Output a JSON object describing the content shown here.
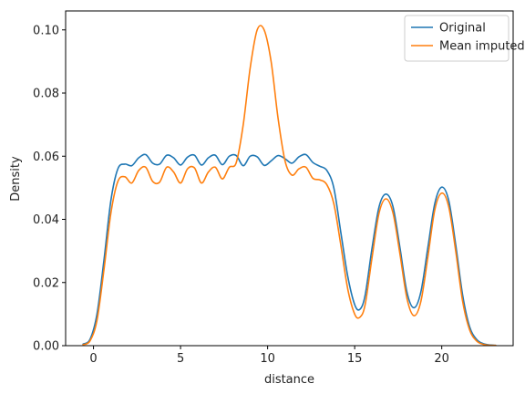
{
  "chart_data": {
    "type": "line",
    "title": "",
    "xlabel": "distance",
    "ylabel": "Density",
    "xlim": [
      -1.6,
      24.1
    ],
    "ylim": [
      0.0,
      0.106
    ],
    "xticks": [
      0,
      5,
      10,
      15,
      20
    ],
    "xtick_labels": [
      "0",
      "5",
      "10",
      "15",
      "20"
    ],
    "yticks": [
      0.0,
      0.02,
      0.04,
      0.06,
      0.08,
      0.1
    ],
    "ytick_labels": [
      "0.00",
      "0.02",
      "0.04",
      "0.06",
      "0.08",
      "0.10"
    ],
    "grid": false,
    "legend": "top-right",
    "series": [
      {
        "name": "Original",
        "color": "#1f77b4",
        "x": [
          -0.6,
          -0.2,
          0.2,
          0.6,
          1.0,
          1.4,
          1.8,
          2.2,
          2.6,
          3.0,
          3.4,
          3.8,
          4.2,
          4.6,
          5.0,
          5.4,
          5.8,
          6.2,
          6.6,
          7.0,
          7.4,
          7.8,
          8.2,
          8.6,
          9.0,
          9.4,
          9.8,
          10.2,
          10.6,
          11.0,
          11.4,
          11.8,
          12.2,
          12.6,
          13.0,
          13.4,
          13.8,
          14.2,
          14.6,
          15.0,
          15.3,
          15.6,
          16.0,
          16.4,
          16.8,
          17.2,
          17.6,
          18.0,
          18.4,
          18.8,
          19.2,
          19.6,
          20.0,
          20.4,
          20.8,
          21.2,
          21.6,
          22.0,
          22.4,
          22.8,
          23.1
        ],
        "y": [
          0.0005,
          0.002,
          0.01,
          0.027,
          0.046,
          0.056,
          0.0575,
          0.057,
          0.0595,
          0.0605,
          0.0578,
          0.0575,
          0.0603,
          0.0595,
          0.0572,
          0.0597,
          0.0603,
          0.0572,
          0.0595,
          0.0603,
          0.0573,
          0.06,
          0.0602,
          0.057,
          0.06,
          0.0598,
          0.0571,
          0.0585,
          0.0602,
          0.0592,
          0.0578,
          0.0598,
          0.0605,
          0.058,
          0.0568,
          0.0555,
          0.05,
          0.036,
          0.022,
          0.013,
          0.0115,
          0.016,
          0.031,
          0.044,
          0.048,
          0.044,
          0.031,
          0.017,
          0.012,
          0.017,
          0.031,
          0.045,
          0.0502,
          0.046,
          0.032,
          0.016,
          0.006,
          0.002,
          0.0006,
          0.0002,
          0.0001
        ]
      },
      {
        "name": "Mean imputed",
        "color": "#ff7f0e",
        "x": [
          -0.6,
          -0.2,
          0.2,
          0.6,
          1.0,
          1.4,
          1.8,
          2.2,
          2.6,
          3.0,
          3.4,
          3.8,
          4.2,
          4.6,
          5.0,
          5.4,
          5.8,
          6.2,
          6.6,
          7.0,
          7.4,
          7.8,
          8.2,
          8.6,
          9.0,
          9.4,
          9.8,
          10.2,
          10.6,
          11.0,
          11.4,
          11.8,
          12.2,
          12.6,
          13.0,
          13.4,
          13.8,
          14.2,
          14.6,
          15.0,
          15.3,
          15.6,
          16.0,
          16.4,
          16.8,
          17.2,
          17.6,
          18.0,
          18.4,
          18.8,
          19.2,
          19.6,
          20.0,
          20.4,
          20.8,
          21.2,
          21.6,
          22.0,
          22.4,
          22.8,
          23.1
        ],
        "y": [
          0.0003,
          0.0015,
          0.008,
          0.024,
          0.042,
          0.052,
          0.0535,
          0.0515,
          0.0555,
          0.0565,
          0.052,
          0.0518,
          0.0565,
          0.055,
          0.0515,
          0.056,
          0.0563,
          0.0515,
          0.055,
          0.0565,
          0.0528,
          0.0565,
          0.058,
          0.07,
          0.088,
          0.1,
          0.1,
          0.09,
          0.072,
          0.0585,
          0.054,
          0.056,
          0.0565,
          0.053,
          0.0525,
          0.051,
          0.045,
          0.032,
          0.018,
          0.01,
          0.009,
          0.013,
          0.028,
          0.042,
          0.0465,
          0.042,
          0.029,
          0.015,
          0.0095,
          0.014,
          0.028,
          0.043,
          0.0483,
          0.044,
          0.03,
          0.014,
          0.005,
          0.0015,
          0.0004,
          0.0001,
          0.0001
        ]
      }
    ]
  }
}
